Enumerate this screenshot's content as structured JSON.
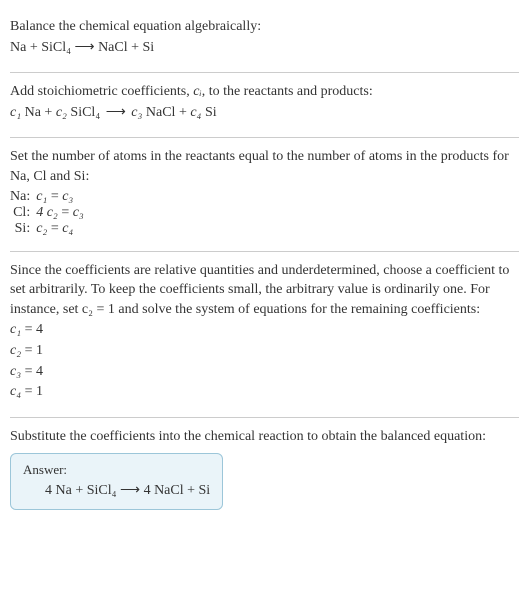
{
  "section1": {
    "lines": [
      "Balance the chemical equation algebraically:",
      "Na + SiCl₄  ⟶  NaCl + Si"
    ]
  },
  "section2": {
    "line1_pre": "Add stoichiometric coefficients, ",
    "line1_ci": "cᵢ",
    "line1_post": ", to the reactants and products:",
    "eq_parts": {
      "c1": "c₁",
      "r1": " Na + ",
      "c2": "c₂",
      "r2": " SiCl₄  ",
      "arrow": "⟶  ",
      "c3": "c₃",
      "r3": " NaCl + ",
      "c4": "c₄",
      "r4": " Si"
    }
  },
  "section3": {
    "lines": [
      "Set the number of atoms in the reactants equal to the number of atoms in the products for Na, Cl and Si:"
    ],
    "rows": [
      {
        "label": "Na:",
        "lhs": "c₁",
        "rhs": "c₃"
      },
      {
        "label": "Cl:",
        "lhs": "4 c₂",
        "rhs": "c₃"
      },
      {
        "label": "Si:",
        "lhs": "c₂",
        "rhs": "c₄"
      }
    ]
  },
  "section4": {
    "line1": "Since the coefficients are relative quantities and underdetermined, choose a coefficient to set arbitrarily. To keep the coefficients small, the arbitrary value is ordinarily one. For instance, set c₂ = 1 and solve the system of equations for the remaining coefficients:",
    "coeffs": [
      {
        "c": "c₁",
        "v": "4"
      },
      {
        "c": "c₂",
        "v": "1"
      },
      {
        "c": "c₃",
        "v": "4"
      },
      {
        "c": "c₄",
        "v": "1"
      }
    ]
  },
  "section5": {
    "line1": "Substitute the coefficients into the chemical reaction to obtain the balanced equation:",
    "answer_label": "Answer:",
    "answer_eq": "4 Na + SiCl₄  ⟶  4 NaCl + Si"
  },
  "colors": {
    "text": "#333333",
    "divider": "#cccccc",
    "box_border": "#9cc6d9",
    "box_bg": "#eaf4f9"
  }
}
